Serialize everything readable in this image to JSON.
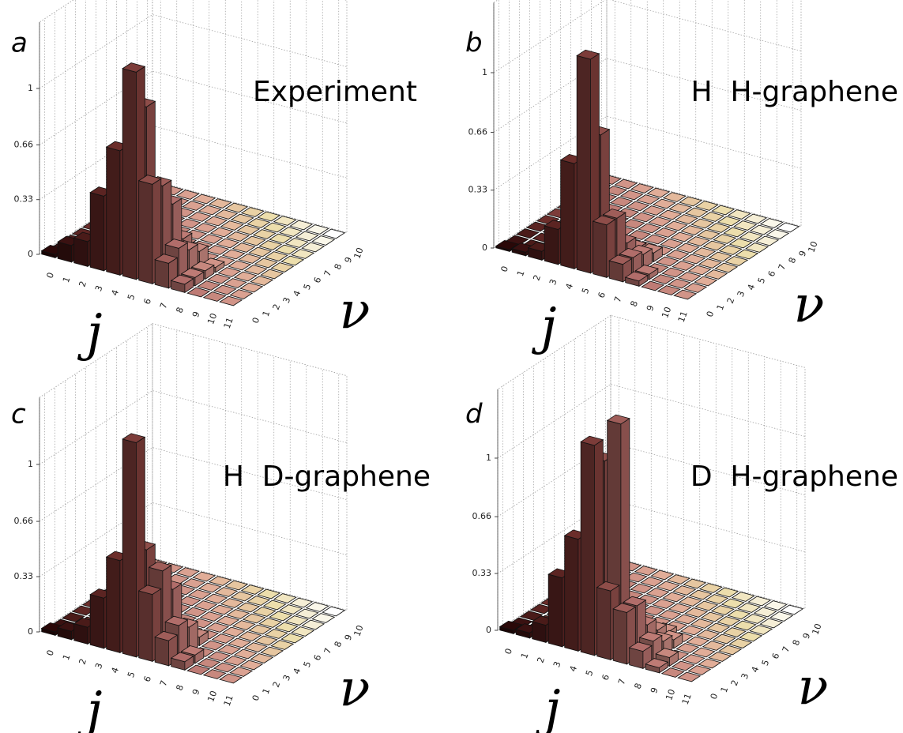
{
  "chart_data": [
    {
      "type": "bar3d",
      "panel_label": "a",
      "title": "Experiment",
      "x_label": "j",
      "y_label": "ν",
      "xticks": [
        0,
        1,
        2,
        3,
        4,
        5,
        6,
        7,
        8,
        9,
        10,
        11
      ],
      "yticks": [
        0,
        1,
        2,
        3,
        4,
        5,
        6,
        7,
        8,
        9,
        10
      ],
      "zlim": [
        0,
        1.4
      ],
      "zticks": [
        0,
        0.33,
        0.66,
        1
      ],
      "grid": true,
      "colormap": [
        "#2a0808",
        "#6e2f2c",
        "#b87470",
        "#e0a896",
        "#ebdca8",
        "#ffffff"
      ],
      "values": [
        [
          0.02,
          0,
          0,
          0,
          0,
          0,
          0,
          0,
          0,
          0,
          0
        ],
        [
          0.1,
          0.05,
          0,
          0,
          0,
          0,
          0,
          0,
          0,
          0,
          0
        ],
        [
          0.15,
          0.1,
          0,
          0,
          0,
          0,
          0,
          0,
          0,
          0,
          0
        ],
        [
          0.45,
          0.2,
          0.05,
          0,
          0,
          0,
          0,
          0,
          0,
          0,
          0
        ],
        [
          0.75,
          0.35,
          0.15,
          0,
          0,
          0,
          0,
          0,
          0,
          0,
          0
        ],
        [
          1.25,
          1.0,
          0.3,
          0.1,
          0,
          0,
          0,
          0,
          0,
          0,
          0
        ],
        [
          0.6,
          0.55,
          0.4,
          0.15,
          0,
          0,
          0,
          0,
          0,
          0,
          0
        ],
        [
          0.15,
          0.2,
          0.15,
          0.1,
          0,
          0,
          0,
          0,
          0,
          0,
          0
        ],
        [
          0.05,
          0.05,
          0.05,
          0.03,
          0,
          0,
          0,
          0,
          0,
          0,
          0
        ],
        [
          0,
          0,
          0,
          0,
          0,
          0,
          0,
          0,
          0,
          0,
          0
        ],
        [
          0,
          0,
          0,
          0,
          0,
          0,
          0,
          0,
          0,
          0,
          0
        ],
        [
          0,
          0,
          0,
          0,
          0,
          0,
          0,
          0,
          0,
          0,
          0
        ]
      ]
    },
    {
      "type": "bar3d",
      "panel_label": "b",
      "title": "H  H-graphene",
      "x_label": "j",
      "y_label": "ν",
      "xticks": [
        0,
        1,
        2,
        3,
        4,
        5,
        6,
        7,
        8,
        9,
        10,
        11
      ],
      "yticks": [
        0,
        1,
        2,
        3,
        4,
        5,
        6,
        7,
        8,
        9,
        10
      ],
      "zlim": [
        0,
        1.4
      ],
      "zticks": [
        0,
        0.33,
        0.66,
        1
      ],
      "grid": true,
      "colormap": [
        "#2a0808",
        "#6e2f2c",
        "#b87470",
        "#e0a896",
        "#ebdca8",
        "#ffffff"
      ],
      "values": [
        [
          0.01,
          0,
          0,
          0,
          0,
          0,
          0,
          0,
          0,
          0,
          0
        ],
        [
          0.02,
          0,
          0,
          0,
          0,
          0,
          0,
          0,
          0,
          0,
          0
        ],
        [
          0.05,
          0,
          0,
          0,
          0,
          0,
          0,
          0,
          0,
          0,
          0
        ],
        [
          0.2,
          0.03,
          0,
          0,
          0,
          0,
          0,
          0,
          0,
          0,
          0
        ],
        [
          0.6,
          0.1,
          0,
          0,
          0,
          0,
          0,
          0,
          0,
          0,
          0
        ],
        [
          1.22,
          0.75,
          0.15,
          0,
          0,
          0,
          0,
          0,
          0,
          0,
          0
        ],
        [
          0.3,
          0.3,
          0.12,
          0.05,
          0,
          0,
          0,
          0,
          0,
          0,
          0
        ],
        [
          0.1,
          0.1,
          0.08,
          0.05,
          0,
          0,
          0,
          0,
          0,
          0,
          0
        ],
        [
          0.03,
          0.03,
          0,
          0,
          0,
          0,
          0,
          0,
          0,
          0,
          0
        ],
        [
          0,
          0,
          0,
          0,
          0,
          0,
          0,
          0,
          0,
          0,
          0
        ],
        [
          0,
          0,
          0,
          0,
          0,
          0,
          0,
          0,
          0,
          0,
          0
        ],
        [
          0,
          0,
          0,
          0,
          0,
          0,
          0,
          0,
          0,
          0,
          0
        ]
      ]
    },
    {
      "type": "bar3d",
      "panel_label": "c",
      "title": "H  D-graphene",
      "x_label": "j",
      "y_label": "ν",
      "xticks": [
        0,
        1,
        2,
        3,
        4,
        5,
        6,
        7,
        8,
        9,
        10,
        11
      ],
      "yticks": [
        0,
        1,
        2,
        3,
        4,
        5,
        6,
        7,
        8,
        9,
        10
      ],
      "zlim": [
        0,
        1.4
      ],
      "zticks": [
        0,
        0.33,
        0.66,
        1
      ],
      "grid": true,
      "colormap": [
        "#2a0808",
        "#6e2f2c",
        "#b87470",
        "#e0a896",
        "#ebdca8",
        "#ffffff"
      ],
      "values": [
        [
          0.02,
          0,
          0,
          0,
          0,
          0,
          0,
          0,
          0,
          0,
          0
        ],
        [
          0.05,
          0,
          0,
          0,
          0,
          0,
          0,
          0,
          0,
          0,
          0
        ],
        [
          0.1,
          0,
          0,
          0,
          0,
          0,
          0,
          0,
          0,
          0,
          0
        ],
        [
          0.3,
          0.05,
          0,
          0,
          0,
          0,
          0,
          0,
          0,
          0,
          0
        ],
        [
          0.55,
          0.15,
          0,
          0,
          0,
          0,
          0,
          0,
          0,
          0,
          0
        ],
        [
          1.28,
          0.6,
          0.15,
          0,
          0,
          0,
          0,
          0,
          0,
          0,
          0
        ],
        [
          0.4,
          0.5,
          0.35,
          0.05,
          0,
          0,
          0,
          0,
          0,
          0,
          0
        ],
        [
          0.15,
          0.2,
          0.15,
          0.05,
          0,
          0,
          0,
          0,
          0,
          0,
          0
        ],
        [
          0.05,
          0.05,
          0,
          0,
          0,
          0,
          0,
          0,
          0,
          0,
          0
        ],
        [
          0,
          0,
          0,
          0,
          0,
          0,
          0,
          0,
          0,
          0,
          0
        ],
        [
          0,
          0,
          0,
          0,
          0,
          0,
          0,
          0,
          0,
          0,
          0
        ],
        [
          0,
          0,
          0,
          0,
          0,
          0,
          0,
          0,
          0,
          0,
          0
        ]
      ]
    },
    {
      "type": "bar3d",
      "panel_label": "d",
      "title": "D  H-graphene",
      "x_label": "j",
      "y_label": "ν",
      "xticks": [
        0,
        1,
        2,
        3,
        4,
        5,
        6,
        7,
        8,
        9,
        10,
        11
      ],
      "yticks": [
        0,
        1,
        2,
        3,
        4,
        5,
        6,
        7,
        8,
        9,
        10
      ],
      "zlim": [
        0,
        1.4
      ],
      "zticks": [
        0,
        0.33,
        0.66,
        1
      ],
      "grid": true,
      "colormap": [
        "#2a0808",
        "#6e2f2c",
        "#b87470",
        "#e0a896",
        "#ebdca8",
        "#ffffff"
      ],
      "values": [
        [
          0.02,
          0,
          0,
          0,
          0,
          0,
          0,
          0,
          0,
          0,
          0
        ],
        [
          0.03,
          0,
          0,
          0,
          0,
          0,
          0,
          0,
          0,
          0,
          0
        ],
        [
          0.1,
          0,
          0,
          0,
          0,
          0,
          0,
          0,
          0,
          0,
          0
        ],
        [
          0.4,
          0.05,
          0,
          0,
          0,
          0,
          0,
          0,
          0,
          0,
          0
        ],
        [
          0.65,
          0.2,
          0,
          0,
          0,
          0,
          0,
          0,
          0,
          0,
          0
        ],
        [
          1.22,
          1.09,
          0.1,
          0,
          0,
          0,
          0,
          0,
          0,
          0,
          0
        ],
        [
          0.4,
          1.33,
          0.2,
          0.05,
          0,
          0,
          0,
          0,
          0,
          0,
          0
        ],
        [
          0.3,
          0.3,
          0.15,
          0.08,
          0.03,
          0,
          0,
          0,
          0,
          0,
          0
        ],
        [
          0.1,
          0.12,
          0.08,
          0.05,
          0,
          0,
          0,
          0,
          0,
          0,
          0
        ],
        [
          0.03,
          0.05,
          0,
          0,
          0,
          0,
          0,
          0,
          0,
          0,
          0
        ],
        [
          0,
          0,
          0,
          0,
          0,
          0,
          0,
          0,
          0,
          0,
          0
        ],
        [
          0,
          0,
          0,
          0,
          0,
          0,
          0,
          0,
          0,
          0,
          0
        ]
      ]
    }
  ]
}
